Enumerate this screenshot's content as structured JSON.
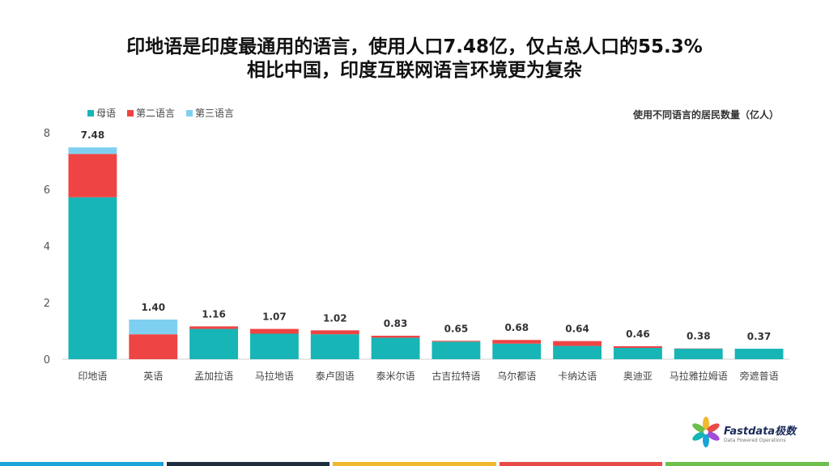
{
  "title_lines": [
    "印地语是印度最通用的语言，使用人口7.48亿，仅占总人口的55.3%",
    "相比中国，印度互联网语言环境更为复杂"
  ],
  "unit_label": "使用不同语言的居民数量（亿人）",
  "logo": {
    "name": "Fastdata极数",
    "tagline": "Data Powered Operations"
  },
  "colors": {
    "footer": [
      "#1aa3d9",
      "#1f2d3d",
      "#f2b82e",
      "#e84a4a",
      "#6bbf4a"
    ]
  },
  "chart_data": {
    "type": "bar",
    "stacked": true,
    "categories": [
      "印地语",
      "英语",
      "孟加拉语",
      "马拉地语",
      "泰卢固语",
      "泰米尔语",
      "古吉拉特语",
      "乌尔都语",
      "卡纳达语",
      "奥迪亚",
      "马拉雅拉姆语",
      "旁遮普语"
    ],
    "series": [
      {
        "name": "母语",
        "color": "#17b5b5",
        "values": [
          5.72,
          0.0,
          1.07,
          0.9,
          0.88,
          0.76,
          0.62,
          0.55,
          0.47,
          0.4,
          0.37,
          0.37
        ]
      },
      {
        "name": "第二语言",
        "color": "#ef4444",
        "values": [
          1.53,
          0.88,
          0.09,
          0.17,
          0.14,
          0.07,
          0.03,
          0.13,
          0.17,
          0.06,
          0.01,
          0.0
        ]
      },
      {
        "name": "第三语言",
        "color": "#7fd0f0",
        "values": [
          0.23,
          0.52,
          0.0,
          0.0,
          0.0,
          0.0,
          0.0,
          0.0,
          0.0,
          0.0,
          0.0,
          0.0
        ]
      }
    ],
    "totals": [
      "7.48",
      "1.40",
      "1.16",
      "1.07",
      "1.02",
      "0.83",
      "0.65",
      "0.68",
      "0.64",
      "0.46",
      "0.38",
      "0.37"
    ],
    "ylim": [
      0,
      8
    ],
    "yticks": [
      "0",
      "2",
      "4",
      "6",
      "8"
    ],
    "grid": false,
    "legend_position": "top-left"
  }
}
